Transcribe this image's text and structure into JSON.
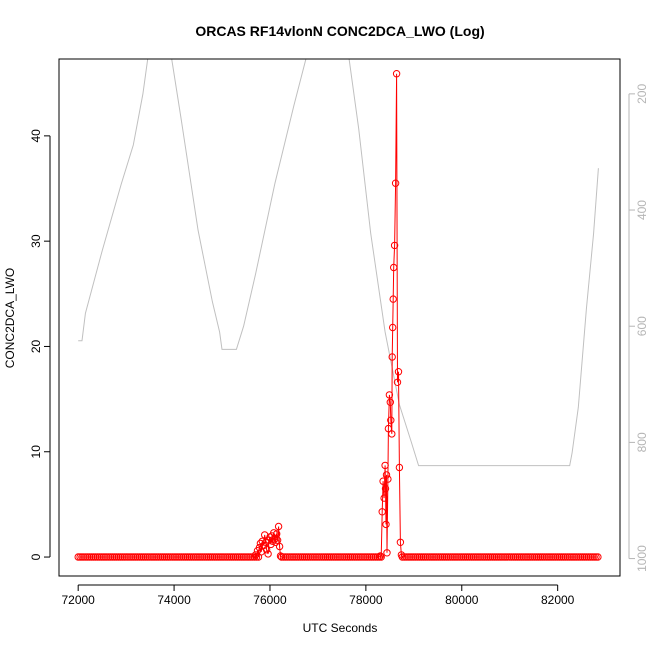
{
  "chart_data": {
    "type": "line",
    "title": "ORCAS RF14vlonN CONC2DCA_LWO (Log)",
    "xlabel": "UTC Seconds",
    "ylabel": "CONC2DCA_LWO",
    "xlim": [
      71600,
      83300
    ],
    "ylim": [
      -1.8,
      47.3
    ],
    "x_ticks": [
      "72000",
      "74000",
      "76000",
      "78000",
      "80000",
      "82000"
    ],
    "y_ticks": [
      "0",
      "10",
      "20",
      "30",
      "40"
    ],
    "y2_ticks": [
      "200",
      "400",
      "600",
      "800",
      "1000"
    ],
    "y2_reversed": true,
    "y2lim": [
      1030,
      140
    ],
    "grid": false,
    "series": [
      {
        "style": "line-with-open-circles",
        "color": "#ff0000",
        "baseline": {
          "x_start": 72000,
          "x_end": 82850,
          "value": 0
        },
        "points": [
          [
            75700,
            0.2
          ],
          [
            75740,
            0.6
          ],
          [
            75780,
            0.9
          ],
          [
            75800,
            1.3
          ],
          [
            75820,
            0.5
          ],
          [
            75840,
            1.5
          ],
          [
            75870,
            1.1
          ],
          [
            75890,
            2.1
          ],
          [
            75910,
            1.4
          ],
          [
            75930,
            0.7
          ],
          [
            75960,
            0.3
          ],
          [
            75980,
            1.6
          ],
          [
            76000,
            1.9
          ],
          [
            76020,
            1.2
          ],
          [
            76040,
            2.0
          ],
          [
            76060,
            1.5
          ],
          [
            76080,
            2.3
          ],
          [
            76100,
            1.7
          ],
          [
            76120,
            1.4
          ],
          [
            76140,
            2.2
          ],
          [
            76160,
            1.6
          ],
          [
            76180,
            2.9
          ],
          [
            76200,
            1.0
          ],
          [
            76220,
            0.1
          ],
          [
            78300,
            0.1
          ],
          [
            78340,
            4.3
          ],
          [
            78360,
            7.2
          ],
          [
            78380,
            5.6
          ],
          [
            78400,
            8.7
          ],
          [
            78410,
            6.5
          ],
          [
            78420,
            3.1
          ],
          [
            78430,
            7.8
          ],
          [
            78440,
            0.4
          ],
          [
            78460,
            7.4
          ],
          [
            78470,
            12.2
          ],
          [
            78490,
            15.4
          ],
          [
            78510,
            14.7
          ],
          [
            78520,
            13.0
          ],
          [
            78540,
            11.7
          ],
          [
            78550,
            19.0
          ],
          [
            78560,
            21.8
          ],
          [
            78570,
            24.5
          ],
          [
            78580,
            27.5
          ],
          [
            78600,
            29.6
          ],
          [
            78620,
            35.5
          ],
          [
            78640,
            45.9
          ],
          [
            78660,
            16.6
          ],
          [
            78680,
            17.6
          ],
          [
            78700,
            8.5
          ],
          [
            78720,
            1.4
          ],
          [
            78740,
            0.2
          ]
        ]
      },
      {
        "name": "",
        "style": "line",
        "color": "#c0c0c0",
        "axis": "right",
        "points": [
          [
            72000,
            625
          ],
          [
            72080,
            625
          ],
          [
            72150,
            578
          ],
          [
            72500,
            470
          ],
          [
            72900,
            355
          ],
          [
            73150,
            288
          ],
          [
            73350,
            200
          ],
          [
            73450,
            140
          ],
          [
            73950,
            140
          ],
          [
            74150,
            245
          ],
          [
            74500,
            435
          ],
          [
            74800,
            558
          ],
          [
            74950,
            610
          ],
          [
            75000,
            640
          ],
          [
            75300,
            640
          ],
          [
            75450,
            600
          ],
          [
            75700,
            510
          ],
          [
            76100,
            355
          ],
          [
            76500,
            220
          ],
          [
            76750,
            140
          ],
          [
            77650,
            140
          ],
          [
            77850,
            260
          ],
          [
            78100,
            440
          ],
          [
            78400,
            610
          ],
          [
            78700,
            735
          ],
          [
            78950,
            800
          ],
          [
            79100,
            840
          ],
          [
            82250,
            840
          ],
          [
            82300,
            818
          ],
          [
            82430,
            740
          ],
          [
            82600,
            570
          ],
          [
            82750,
            440
          ],
          [
            82850,
            328
          ]
        ]
      }
    ]
  }
}
